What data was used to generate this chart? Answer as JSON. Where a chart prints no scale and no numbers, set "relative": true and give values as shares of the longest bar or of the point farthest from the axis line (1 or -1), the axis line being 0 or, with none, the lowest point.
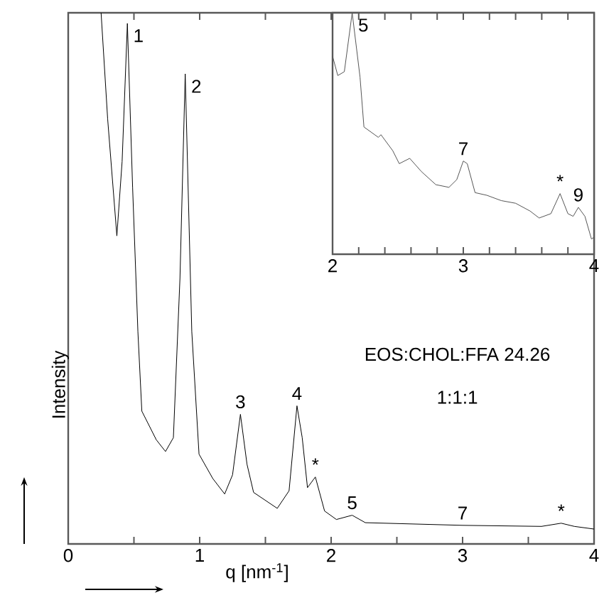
{
  "chart_data": [
    {
      "type": "line",
      "xlabel": "q [nm$^{-1}$]",
      "ylabel": "Intensity",
      "relative": true,
      "color": "#000000",
      "xlim": [
        0,
        4
      ],
      "xticks": [
        0,
        {
          "value": 0.5,
          "label": null
        },
        1,
        {
          "value": 1.5,
          "label": null
        },
        2,
        {
          "value": 2.5,
          "label": null
        },
        3,
        {
          "value": 3.5,
          "label": null
        },
        4
      ],
      "x": [
        0.25,
        0.3,
        0.37,
        0.41,
        0.45,
        0.49,
        0.53,
        0.56,
        0.67,
        0.74,
        0.8,
        0.85,
        0.89,
        0.94,
        0.995,
        1.1,
        1.19,
        1.25,
        1.31,
        1.36,
        1.41,
        1.59,
        1.68,
        1.74,
        1.78,
        1.82,
        1.88,
        1.95,
        2.04,
        2.16,
        2.26,
        3.0,
        3.6,
        3.75,
        3.85,
        4.0
      ],
      "values": [
        1.0,
        0.8,
        0.58,
        0.72,
        0.98,
        0.67,
        0.4,
        0.25,
        0.196,
        0.174,
        0.2,
        0.5,
        0.885,
        0.4,
        0.169,
        0.123,
        0.094,
        0.13,
        0.244,
        0.15,
        0.097,
        0.067,
        0.1,
        0.26,
        0.2,
        0.106,
        0.126,
        0.062,
        0.046,
        0.054,
        0.04,
        0.035,
        0.033,
        0.039,
        0.033,
        0.028
      ],
      "annotations": [
        {
          "text": "1",
          "x": 0.45,
          "y": 0.98
        },
        {
          "text": "2",
          "x": 0.89,
          "y": 0.885
        },
        {
          "text": "3",
          "x": 1.31,
          "y": 0.244
        },
        {
          "text": "4",
          "x": 1.74,
          "y": 0.26
        },
        {
          "text": "*",
          "x": 1.88,
          "y": 0.126
        },
        {
          "text": "5",
          "x": 2.16,
          "y": 0.054
        },
        {
          "text": "7",
          "x": 3.0,
          "y": 0.035
        },
        {
          "text": "*",
          "x": 3.75,
          "y": 0.039
        },
        "EOS:CHOL:FFA 24.26",
        "1:1:1"
      ]
    },
    {
      "type": "line",
      "relative": true,
      "color": "#555555",
      "xlim": [
        2,
        4
      ],
      "xticks": [
        2,
        {
          "value": 2.2,
          "label": null
        },
        {
          "value": 2.4,
          "label": null
        },
        {
          "value": 2.6,
          "label": null
        },
        {
          "value": 2.8,
          "label": null
        },
        3,
        {
          "value": 3.2,
          "label": null
        },
        {
          "value": 3.4,
          "label": null
        },
        {
          "value": 3.6,
          "label": null
        },
        {
          "value": 3.8,
          "label": null
        },
        4
      ],
      "x": [
        2.0,
        2.04,
        2.09,
        2.15,
        2.21,
        2.24,
        2.35,
        2.37,
        2.46,
        2.51,
        2.59,
        2.68,
        2.79,
        2.89,
        2.95,
        3.0,
        3.03,
        3.09,
        3.18,
        3.29,
        3.4,
        3.51,
        3.58,
        3.67,
        3.74,
        3.8,
        3.84,
        3.88,
        3.93,
        3.98,
        4.0
      ],
      "values": [
        0.82,
        0.74,
        0.756,
        1.0,
        0.734,
        0.527,
        0.484,
        0.495,
        0.429,
        0.375,
        0.397,
        0.342,
        0.288,
        0.277,
        0.309,
        0.386,
        0.375,
        0.255,
        0.244,
        0.222,
        0.211,
        0.179,
        0.15,
        0.168,
        0.251,
        0.168,
        0.157,
        0.194,
        0.157,
        0.063,
        0.07
      ],
      "annotations": [
        {
          "text": "5",
          "x": 2.15,
          "y": 1.0
        },
        {
          "text": "7",
          "x": 3.0,
          "y": 0.386
        },
        {
          "text": "*",
          "x": 3.74,
          "y": 0.251
        },
        {
          "text": "9",
          "x": 3.88,
          "y": 0.194
        }
      ]
    }
  ]
}
